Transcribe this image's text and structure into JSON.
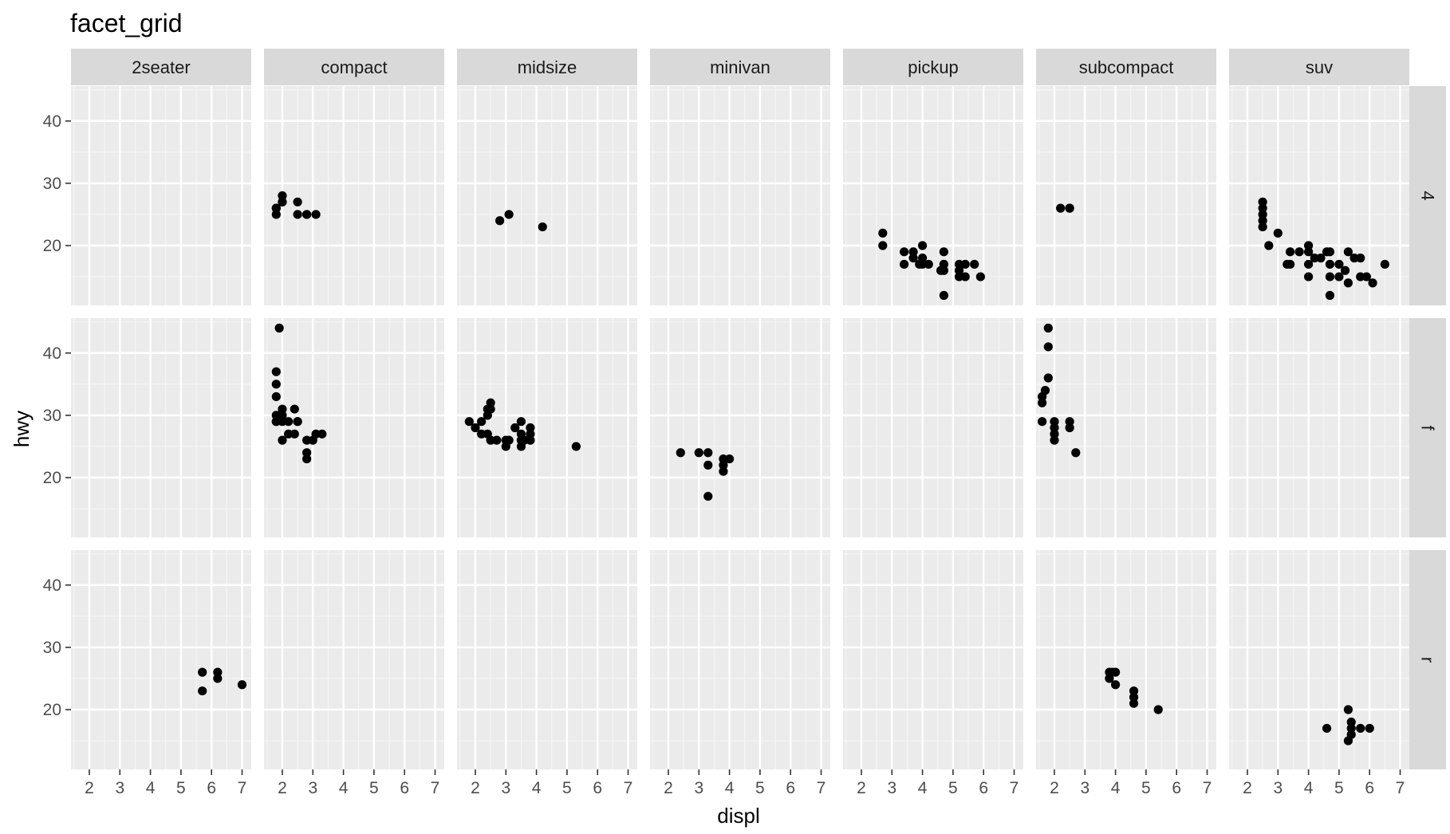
{
  "chart_data": {
    "type": "scatter",
    "title": "facet_grid",
    "xlabel": "displ",
    "ylabel": "hwy",
    "xlim": [
      1.4,
      7.3
    ],
    "ylim": [
      10.4,
      45.6
    ],
    "x_ticks": [
      2,
      3,
      4,
      5,
      6,
      7
    ],
    "y_ticks": [
      20,
      30,
      40
    ],
    "grid": true,
    "facet_cols": [
      "2seater",
      "compact",
      "midsize",
      "minivan",
      "pickup",
      "subcompact",
      "suv"
    ],
    "facet_rows": [
      "4",
      "f",
      "r"
    ],
    "colors": {
      "panel_bg": "#ebebeb",
      "grid_major": "#ffffff",
      "grid_minor": "#f5f5f5",
      "strip_bg": "#d9d9d9",
      "point": "#000000",
      "tick": "#333333"
    },
    "panels": [
      {
        "row": "4",
        "col": "2seater",
        "points": []
      },
      {
        "row": "4",
        "col": "compact",
        "points": [
          [
            1.8,
            26
          ],
          [
            1.8,
            25
          ],
          [
            2.0,
            28
          ],
          [
            2.0,
            27
          ],
          [
            2.8,
            25
          ],
          [
            2.8,
            25
          ],
          [
            3.1,
            25
          ],
          [
            1.8,
            26
          ],
          [
            2.5,
            27
          ],
          [
            2.5,
            25
          ],
          [
            2.0,
            27
          ]
        ]
      },
      {
        "row": "4",
        "col": "midsize",
        "points": [
          [
            2.8,
            24
          ],
          [
            3.1,
            25
          ],
          [
            4.2,
            23
          ]
        ]
      },
      {
        "row": "4",
        "col": "minivan",
        "points": []
      },
      {
        "row": "4",
        "col": "pickup",
        "points": [
          [
            2.7,
            22
          ],
          [
            2.7,
            20
          ],
          [
            3.4,
            17
          ],
          [
            3.4,
            19
          ],
          [
            3.7,
            19
          ],
          [
            3.7,
            18
          ],
          [
            3.9,
            17
          ],
          [
            4.0,
            18
          ],
          [
            4.0,
            20
          ],
          [
            4.0,
            17
          ],
          [
            4.2,
            17
          ],
          [
            4.7,
            19
          ],
          [
            4.7,
            17
          ],
          [
            4.7,
            16
          ],
          [
            4.7,
            12
          ],
          [
            4.7,
            17
          ],
          [
            5.2,
            15
          ],
          [
            5.2,
            16
          ],
          [
            5.2,
            17
          ],
          [
            5.4,
            15
          ],
          [
            5.4,
            17
          ],
          [
            5.7,
            17
          ],
          [
            5.9,
            15
          ],
          [
            4.6,
            16
          ]
        ]
      },
      {
        "row": "4",
        "col": "subcompact",
        "points": [
          [
            2.2,
            26
          ],
          [
            2.5,
            26
          ],
          [
            2.5,
            26
          ]
        ]
      },
      {
        "row": "4",
        "col": "suv",
        "points": [
          [
            2.5,
            27
          ],
          [
            2.5,
            26
          ],
          [
            2.5,
            25
          ],
          [
            2.5,
            24
          ],
          [
            2.5,
            23
          ],
          [
            2.7,
            20
          ],
          [
            3.0,
            22
          ],
          [
            3.3,
            17
          ],
          [
            3.4,
            17
          ],
          [
            3.4,
            19
          ],
          [
            3.7,
            19
          ],
          [
            4.0,
            19
          ],
          [
            4.0,
            17
          ],
          [
            4.0,
            20
          ],
          [
            4.0,
            15
          ],
          [
            4.2,
            18
          ],
          [
            4.4,
            18
          ],
          [
            4.6,
            19
          ],
          [
            4.7,
            19
          ],
          [
            4.7,
            17
          ],
          [
            4.7,
            15
          ],
          [
            4.7,
            12
          ],
          [
            5.0,
            17
          ],
          [
            5.0,
            15
          ],
          [
            5.2,
            16
          ],
          [
            5.3,
            19
          ],
          [
            5.3,
            14
          ],
          [
            5.5,
            18
          ],
          [
            5.7,
            18
          ],
          [
            5.7,
            15
          ],
          [
            5.9,
            15
          ],
          [
            6.1,
            14
          ],
          [
            6.5,
            17
          ]
        ]
      },
      {
        "row": "f",
        "col": "2seater",
        "points": []
      },
      {
        "row": "f",
        "col": "compact",
        "points": [
          [
            1.8,
            29
          ],
          [
            1.8,
            29
          ],
          [
            1.8,
            30
          ],
          [
            1.8,
            33
          ],
          [
            1.8,
            35
          ],
          [
            1.8,
            37
          ],
          [
            1.9,
            44
          ],
          [
            2.0,
            31
          ],
          [
            2.0,
            30
          ],
          [
            2.0,
            29
          ],
          [
            2.0,
            26
          ],
          [
            2.2,
            27
          ],
          [
            2.2,
            29
          ],
          [
            2.4,
            27
          ],
          [
            2.4,
            31
          ],
          [
            2.5,
            29
          ],
          [
            2.5,
            29
          ],
          [
            2.8,
            26
          ],
          [
            2.8,
            24
          ],
          [
            2.8,
            23
          ],
          [
            3.0,
            26
          ],
          [
            3.1,
            27
          ],
          [
            3.3,
            27
          ]
        ]
      },
      {
        "row": "f",
        "col": "midsize",
        "points": [
          [
            1.8,
            29
          ],
          [
            2.0,
            28
          ],
          [
            2.2,
            29
          ],
          [
            2.4,
            27
          ],
          [
            2.4,
            31
          ],
          [
            2.5,
            32
          ],
          [
            2.4,
            30
          ],
          [
            2.5,
            26
          ],
          [
            2.7,
            26
          ],
          [
            3.0,
            25
          ],
          [
            3.0,
            26
          ],
          [
            3.1,
            26
          ],
          [
            3.3,
            28
          ],
          [
            3.5,
            29
          ],
          [
            3.5,
            25
          ],
          [
            3.5,
            26
          ],
          [
            3.5,
            27
          ],
          [
            3.6,
            26
          ],
          [
            3.8,
            28
          ],
          [
            3.8,
            26
          ],
          [
            3.8,
            27
          ],
          [
            5.3,
            25
          ],
          [
            2.2,
            27
          ],
          [
            2.5,
            31
          ]
        ]
      },
      {
        "row": "f",
        "col": "minivan",
        "points": [
          [
            2.4,
            24
          ],
          [
            3.0,
            24
          ],
          [
            3.3,
            24
          ],
          [
            3.3,
            22
          ],
          [
            3.3,
            17
          ],
          [
            3.8,
            23
          ],
          [
            3.8,
            22
          ],
          [
            3.8,
            21
          ],
          [
            4.0,
            23
          ]
        ]
      },
      {
        "row": "f",
        "col": "pickup",
        "points": []
      },
      {
        "row": "f",
        "col": "subcompact",
        "points": [
          [
            1.6,
            33
          ],
          [
            1.6,
            32
          ],
          [
            1.6,
            29
          ],
          [
            1.7,
            34
          ],
          [
            1.8,
            36
          ],
          [
            1.8,
            41
          ],
          [
            1.8,
            44
          ],
          [
            2.0,
            29
          ],
          [
            2.0,
            28
          ],
          [
            2.0,
            27
          ],
          [
            2.0,
            26
          ],
          [
            2.5,
            28
          ],
          [
            2.5,
            29
          ],
          [
            2.7,
            24
          ]
        ]
      },
      {
        "row": "f",
        "col": "suv",
        "points": []
      },
      {
        "row": "r",
        "col": "2seater",
        "points": [
          [
            5.7,
            26
          ],
          [
            5.7,
            23
          ],
          [
            6.2,
            26
          ],
          [
            6.2,
            25
          ],
          [
            7.0,
            24
          ]
        ]
      },
      {
        "row": "r",
        "col": "compact",
        "points": []
      },
      {
        "row": "r",
        "col": "midsize",
        "points": []
      },
      {
        "row": "r",
        "col": "minivan",
        "points": []
      },
      {
        "row": "r",
        "col": "pickup",
        "points": []
      },
      {
        "row": "r",
        "col": "subcompact",
        "points": [
          [
            3.8,
            26
          ],
          [
            3.8,
            25
          ],
          [
            4.0,
            26
          ],
          [
            4.0,
            24
          ],
          [
            4.6,
            23
          ],
          [
            4.6,
            22
          ],
          [
            4.6,
            21
          ],
          [
            5.4,
            20
          ],
          [
            3.9,
            26
          ]
        ]
      },
      {
        "row": "r",
        "col": "suv",
        "points": [
          [
            4.6,
            17
          ],
          [
            5.3,
            20
          ],
          [
            5.3,
            15
          ],
          [
            5.4,
            18
          ],
          [
            5.4,
            17
          ],
          [
            5.4,
            16
          ],
          [
            5.7,
            17
          ],
          [
            6.0,
            17
          ]
        ]
      }
    ]
  }
}
